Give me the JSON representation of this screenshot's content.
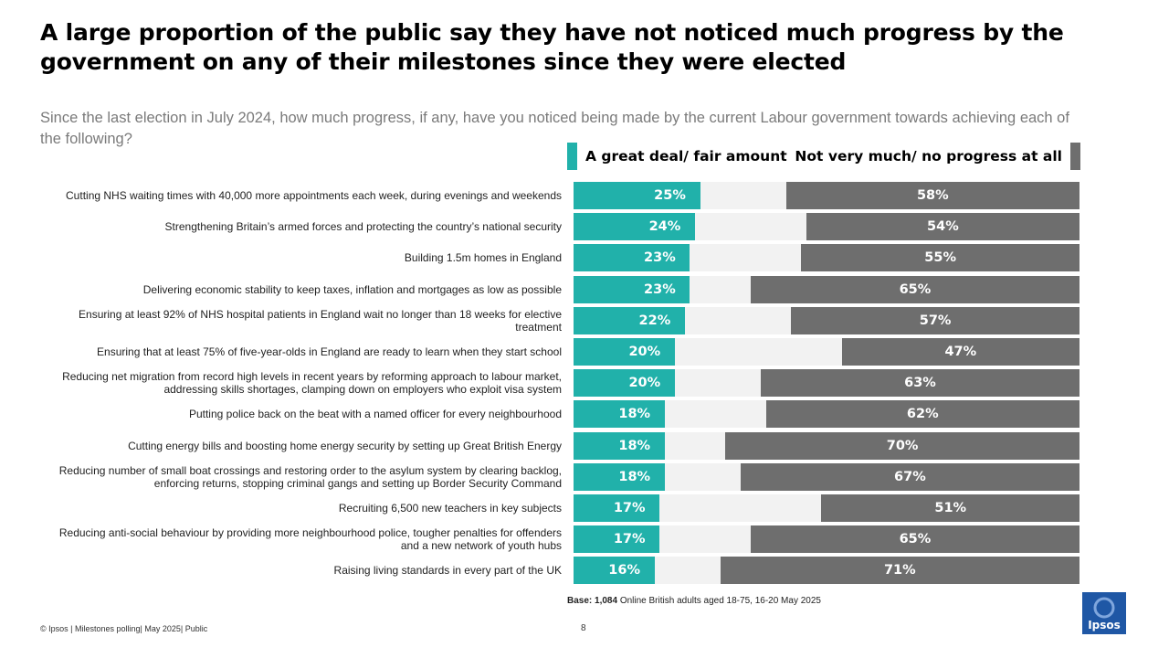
{
  "title": "A large proportion of the public say they have not noticed much progress by the government on any of their milestones since they were elected",
  "subtitle": "Since the last election in July 2024, how much progress, if any, have you noticed being made by the current Labour government towards achieving each of the following?",
  "colors": {
    "positive": "#21b1aa",
    "neutral": "#f2f2f2",
    "negative": "#6e6e6e",
    "logo": "#1f57a5"
  },
  "chart_data": {
    "type": "bar",
    "orientation": "horizontal-diverging",
    "series": [
      {
        "name": "A great deal/ fair amount",
        "values": [
          25,
          24,
          23,
          23,
          22,
          20,
          20,
          18,
          18,
          18,
          17,
          17,
          16
        ]
      },
      {
        "name": "Not very much/ no progress at all",
        "values": [
          58,
          54,
          55,
          65,
          57,
          47,
          63,
          62,
          70,
          67,
          51,
          65,
          71
        ]
      }
    ],
    "categories": [
      "Cutting NHS waiting times with 40,000 more appointments each week, during evenings and weekends",
      "Strengthening Britain’s armed forces and protecting the country’s national security",
      "Building 1.5m homes in England",
      "Delivering economic stability to keep taxes, inflation and mortgages as low as possible",
      "Ensuring at least 92% of NHS hospital patients in England wait no longer than 18 weeks for elective treatment",
      "Ensuring that at least 75% of five-year-olds in England are ready to learn when they start school",
      "Reducing net migration from record high levels in recent years by reforming approach to labour market, addressing skills shortages, clamping down on employers who exploit visa system",
      "Putting police back on the beat with a named officer for every neighbourhood",
      "Cutting energy bills and boosting home energy security by setting up Great British Energy",
      "Reducing number of small boat crossings and restoring order to the asylum system by clearing backlog, enforcing returns, stopping criminal gangs and setting up Border Security Command",
      "Recruiting 6,500 new teachers in key subjects",
      "Reducing anti-social behaviour by providing more neighbourhood police, tougher penalties for offenders and a new network of youth hubs",
      "Raising living standards in every part of the UK"
    ],
    "value_suffix": "%",
    "xlim": [
      0,
      100
    ]
  },
  "base_note": {
    "label": "Base: 1,084",
    "text": " Online British adults aged 18-75, 16-20 May 2025"
  },
  "footer": "© Ipsos | Milestones polling| May 2025| Public",
  "page_number": "8",
  "logo_text": "Ipsos"
}
